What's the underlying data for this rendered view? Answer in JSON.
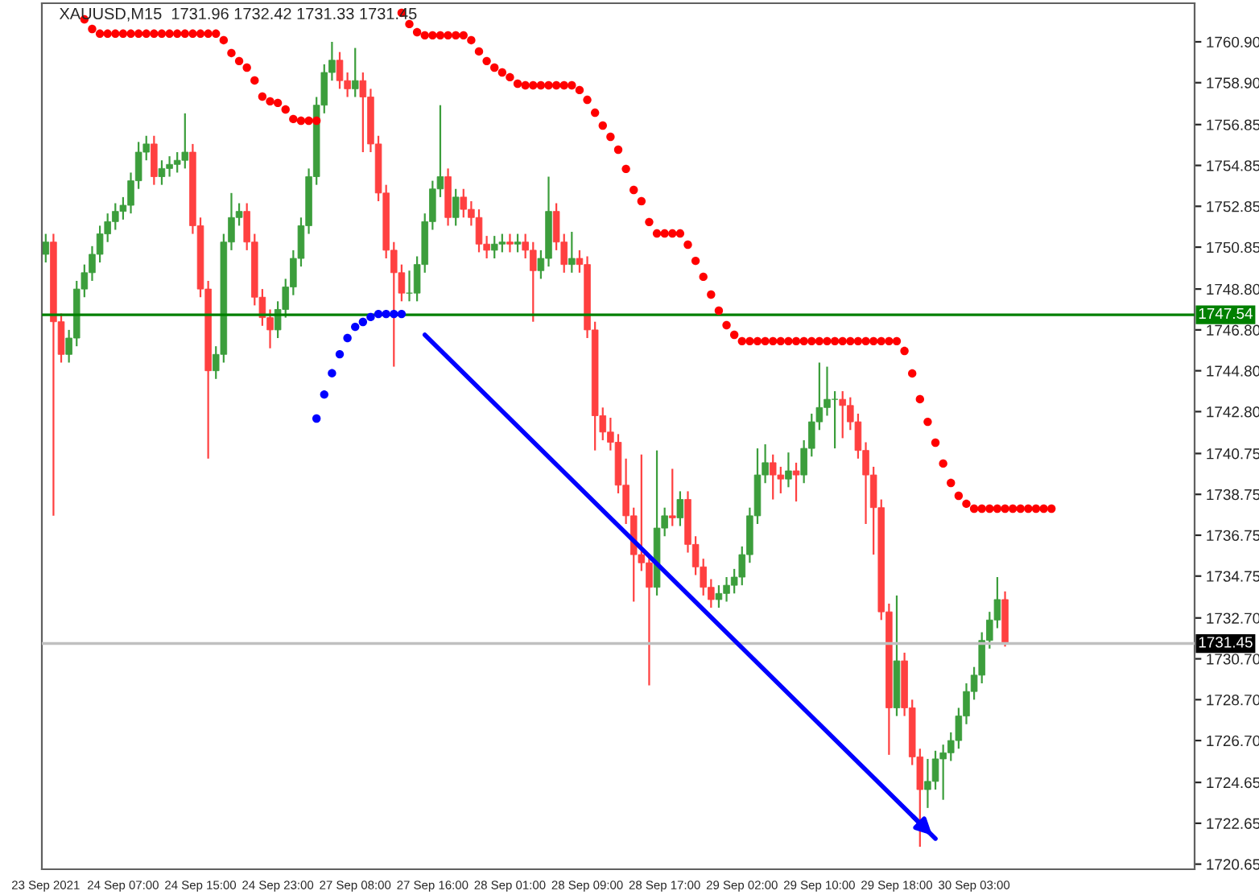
{
  "chart_data": {
    "type": "candlestick",
    "title": "XAUUSD,M15  1731.96 1732.42 1731.33 1731.45",
    "categories": [
      "23 Sep 2021",
      null,
      null,
      null,
      null,
      null,
      null,
      null,
      null,
      null,
      "24 Sep 07:00",
      null,
      null,
      null,
      null,
      null,
      null,
      null,
      null,
      null,
      "24 Sep 15:00",
      null,
      null,
      null,
      null,
      null,
      null,
      null,
      null,
      null,
      "24 Sep 23:00",
      null,
      null,
      null,
      null,
      null,
      null,
      null,
      null,
      null,
      "27 Sep 08:00",
      null,
      null,
      null,
      null,
      null,
      null,
      null,
      null,
      null,
      "27 Sep 16:00",
      null,
      null,
      null,
      null,
      null,
      null,
      null,
      null,
      null,
      "28 Sep 01:00",
      null,
      null,
      null,
      null,
      null,
      null,
      null,
      null,
      null,
      "28 Sep 09:00",
      null,
      null,
      null,
      null,
      null,
      null,
      null,
      null,
      null,
      "28 Sep 17:00",
      null,
      null,
      null,
      null,
      null,
      null,
      null,
      null,
      null,
      "29 Sep 02:00",
      null,
      null,
      null,
      null,
      null,
      null,
      null,
      null,
      null,
      "29 Sep 10:00",
      null,
      null,
      null,
      null,
      null,
      null,
      null,
      null,
      null,
      "29 Sep 18:00",
      null,
      null,
      null,
      null,
      null,
      null,
      null,
      null,
      null,
      "30 Sep 03:00",
      null,
      null,
      null,
      null,
      null,
      null,
      null,
      null,
      null,
      null,
      null,
      null,
      null,
      null,
      null,
      null,
      null,
      null,
      null,
      null,
      null,
      null,
      null,
      null,
      null,
      null,
      null,
      null
    ],
    "ohlc": [
      [
        1750.5,
        1751.5,
        1750.1,
        1751.1
      ],
      [
        1751.1,
        1751.5,
        1737.7,
        1747.2
      ],
      [
        1747.2,
        1747.6,
        1745.2,
        1745.6
      ],
      [
        1745.6,
        1746.8,
        1745.2,
        1746.4
      ],
      [
        1746.4,
        1749.2,
        1746.0,
        1748.8
      ],
      [
        1748.8,
        1750.0,
        1748.4,
        1749.6
      ],
      [
        1749.6,
        1750.9,
        1749.2,
        1750.5
      ],
      [
        1750.5,
        1751.9,
        1750.1,
        1751.5
      ],
      [
        1751.5,
        1752.5,
        1751.1,
        1752.1
      ],
      [
        1752.1,
        1753.0,
        1751.7,
        1752.6
      ],
      [
        1752.6,
        1753.3,
        1752.2,
        1752.9
      ],
      [
        1752.9,
        1754.5,
        1752.5,
        1754.1
      ],
      [
        1754.1,
        1756.0,
        1753.7,
        1755.5
      ],
      [
        1755.5,
        1756.3,
        1755.1,
        1755.9
      ],
      [
        1755.9,
        1756.3,
        1753.9,
        1754.3
      ],
      [
        1754.3,
        1755.1,
        1753.9,
        1754.7
      ],
      [
        1754.7,
        1755.3,
        1754.3,
        1754.9
      ],
      [
        1754.9,
        1755.5,
        1754.5,
        1755.1
      ],
      [
        1755.1,
        1757.4,
        1754.7,
        1755.5
      ],
      [
        1755.5,
        1755.9,
        1751.5,
        1751.9
      ],
      [
        1751.9,
        1752.3,
        1748.4,
        1748.8
      ],
      [
        1748.8,
        1749.2,
        1740.5,
        1744.8
      ],
      [
        1744.8,
        1746.0,
        1744.4,
        1745.6
      ],
      [
        1745.6,
        1751.5,
        1745.2,
        1751.1
      ],
      [
        1751.1,
        1753.5,
        1750.7,
        1752.3
      ],
      [
        1752.3,
        1753.0,
        1751.9,
        1752.6
      ],
      [
        1752.6,
        1753.0,
        1750.7,
        1751.1
      ],
      [
        1751.1,
        1751.5,
        1748.0,
        1748.4
      ],
      [
        1748.4,
        1748.8,
        1747.0,
        1747.4
      ],
      [
        1747.4,
        1747.8,
        1745.9,
        1746.8
      ],
      [
        1746.8,
        1748.2,
        1746.4,
        1747.8
      ],
      [
        1747.8,
        1749.3,
        1747.4,
        1748.9
      ],
      [
        1748.9,
        1750.7,
        1748.5,
        1750.3
      ],
      [
        1750.3,
        1752.3,
        1749.9,
        1751.9
      ],
      [
        1751.9,
        1754.7,
        1751.5,
        1754.3
      ],
      [
        1754.3,
        1758.2,
        1753.9,
        1757.8
      ],
      [
        1757.8,
        1759.8,
        1757.4,
        1759.4
      ],
      [
        1759.4,
        1760.9,
        1759.0,
        1760.0
      ],
      [
        1760.0,
        1760.4,
        1758.6,
        1759.0
      ],
      [
        1759.0,
        1759.4,
        1758.2,
        1758.6
      ],
      [
        1758.6,
        1760.6,
        1758.2,
        1759.0
      ],
      [
        1759.0,
        1759.4,
        1755.5,
        1758.2
      ],
      [
        1758.2,
        1758.6,
        1755.5,
        1755.9
      ],
      [
        1755.9,
        1756.3,
        1753.1,
        1753.5
      ],
      [
        1753.5,
        1753.9,
        1750.3,
        1750.7
      ],
      [
        1750.7,
        1751.1,
        1745.0,
        1749.6
      ],
      [
        1749.6,
        1750.0,
        1748.2,
        1748.6
      ],
      [
        1748.6,
        1749.7,
        1748.2,
        1748.6
      ],
      [
        1748.6,
        1750.4,
        1748.2,
        1750.0
      ],
      [
        1750.0,
        1752.5,
        1749.6,
        1752.1
      ],
      [
        1752.1,
        1754.1,
        1751.7,
        1753.7
      ],
      [
        1753.7,
        1757.8,
        1753.3,
        1754.3
      ],
      [
        1754.3,
        1754.7,
        1751.9,
        1752.3
      ],
      [
        1752.3,
        1753.7,
        1751.9,
        1753.3
      ],
      [
        1753.3,
        1753.7,
        1752.3,
        1752.7
      ],
      [
        1752.7,
        1753.1,
        1751.9,
        1752.3
      ],
      [
        1752.3,
        1752.7,
        1750.6,
        1751.0
      ],
      [
        1751.0,
        1751.4,
        1750.3,
        1750.7
      ],
      [
        1750.7,
        1751.4,
        1750.3,
        1751.0
      ],
      [
        1751.0,
        1751.5,
        1750.6,
        1751.1
      ],
      [
        1751.1,
        1751.5,
        1750.6,
        1751.0
      ],
      [
        1751.0,
        1751.5,
        1750.6,
        1751.1
      ],
      [
        1751.1,
        1751.5,
        1750.3,
        1750.7
      ],
      [
        1750.7,
        1751.1,
        1747.2,
        1749.7
      ],
      [
        1749.7,
        1750.7,
        1749.3,
        1750.3
      ],
      [
        1750.3,
        1754.3,
        1749.9,
        1752.6
      ],
      [
        1752.6,
        1753.0,
        1750.7,
        1751.1
      ],
      [
        1751.1,
        1751.5,
        1749.6,
        1750.0
      ],
      [
        1750.0,
        1751.6,
        1749.6,
        1750.3
      ],
      [
        1750.3,
        1750.7,
        1749.6,
        1750.0
      ],
      [
        1750.0,
        1750.4,
        1746.4,
        1746.8
      ],
      [
        1746.8,
        1747.2,
        1740.9,
        1742.6
      ],
      [
        1742.6,
        1743.0,
        1741.4,
        1741.8
      ],
      [
        1741.8,
        1742.5,
        1740.9,
        1741.3
      ],
      [
        1741.3,
        1741.7,
        1738.8,
        1739.2
      ],
      [
        1739.2,
        1740.5,
        1737.3,
        1737.7
      ],
      [
        1737.7,
        1738.1,
        1733.5,
        1735.8
      ],
      [
        1735.8,
        1740.7,
        1735.0,
        1735.4
      ],
      [
        1735.4,
        1735.8,
        1729.4,
        1734.2
      ],
      [
        1734.2,
        1740.9,
        1733.8,
        1737.1
      ],
      [
        1737.1,
        1738.1,
        1736.7,
        1737.7
      ],
      [
        1737.7,
        1740.0,
        1737.2,
        1737.6
      ],
      [
        1737.6,
        1738.9,
        1737.2,
        1738.5
      ],
      [
        1738.5,
        1738.9,
        1735.9,
        1736.3
      ],
      [
        1736.3,
        1736.7,
        1734.8,
        1735.2
      ],
      [
        1735.2,
        1735.6,
        1733.8,
        1734.2
      ],
      [
        1734.2,
        1734.6,
        1733.2,
        1733.6
      ],
      [
        1733.6,
        1734.3,
        1733.2,
        1733.9
      ],
      [
        1733.9,
        1734.7,
        1733.5,
        1734.3
      ],
      [
        1734.3,
        1735.1,
        1733.9,
        1734.7
      ],
      [
        1734.7,
        1736.2,
        1734.3,
        1735.8
      ],
      [
        1735.8,
        1738.1,
        1735.4,
        1737.7
      ],
      [
        1737.7,
        1741.0,
        1737.3,
        1739.7
      ],
      [
        1739.7,
        1741.2,
        1739.3,
        1740.3
      ],
      [
        1740.3,
        1740.7,
        1738.5,
        1739.7
      ],
      [
        1739.7,
        1740.1,
        1738.8,
        1739.5
      ],
      [
        1739.5,
        1740.8,
        1739.1,
        1739.9
      ],
      [
        1739.9,
        1740.3,
        1738.4,
        1739.7
      ],
      [
        1739.7,
        1741.4,
        1739.3,
        1741.0
      ],
      [
        1741.0,
        1742.7,
        1740.6,
        1742.3
      ],
      [
        1742.3,
        1745.2,
        1741.9,
        1743.0
      ],
      [
        1743.0,
        1745.0,
        1742.6,
        1743.4
      ],
      [
        1743.4,
        1743.8,
        1741.0,
        1743.4
      ],
      [
        1743.4,
        1743.8,
        1741.5,
        1743.1
      ],
      [
        1743.1,
        1743.5,
        1741.9,
        1742.3
      ],
      [
        1742.3,
        1742.7,
        1740.5,
        1740.9
      ],
      [
        1740.9,
        1741.3,
        1737.3,
        1739.7
      ],
      [
        1739.7,
        1740.1,
        1735.8,
        1738.1
      ],
      [
        1738.1,
        1738.5,
        1732.6,
        1733.0
      ],
      [
        1733.0,
        1733.4,
        1726.0,
        1728.3
      ],
      [
        1728.3,
        1733.8,
        1727.9,
        1730.6
      ],
      [
        1730.6,
        1731.0,
        1727.9,
        1728.3
      ],
      [
        1728.3,
        1728.7,
        1725.5,
        1725.9
      ],
      [
        1725.9,
        1726.3,
        1721.5,
        1724.3
      ],
      [
        1724.3,
        1725.8,
        1723.4,
        1724.7
      ],
      [
        1724.7,
        1726.2,
        1724.3,
        1725.8
      ],
      [
        1725.8,
        1726.5,
        1723.8,
        1726.1
      ],
      [
        1726.1,
        1727.1,
        1725.7,
        1726.7
      ],
      [
        1726.7,
        1728.3,
        1726.3,
        1727.9
      ],
      [
        1727.9,
        1729.5,
        1727.5,
        1729.1
      ],
      [
        1729.1,
        1730.3,
        1728.7,
        1729.9
      ],
      [
        1729.9,
        1732.0,
        1729.5,
        1731.6
      ],
      [
        1731.6,
        1733.0,
        1731.2,
        1732.6
      ],
      [
        1732.6,
        1734.7,
        1732.2,
        1733.6
      ],
      [
        1733.6,
        1734.0,
        1731.3,
        1731.5
      ],
      null,
      null,
      null,
      null,
      null,
      null,
      null,
      null,
      null,
      null,
      null,
      null,
      null,
      null,
      null,
      null,
      null,
      null,
      null,
      null,
      null,
      null,
      null,
      null
    ],
    "series": [
      {
        "type": "scatter",
        "color": "#ff0000",
        "values": [
          null,
          null,
          null,
          null,
          null,
          1762.0,
          1761.53,
          1761.3,
          1761.3,
          1761.3,
          1761.3,
          1761.3,
          1761.3,
          1761.3,
          1761.3,
          1761.3,
          1761.3,
          1761.3,
          1761.3,
          1761.3,
          1761.3,
          1761.3,
          1761.3,
          1760.98,
          1760.35,
          1759.96,
          1759.64,
          1759.01,
          1758.22,
          1757.99,
          1757.91,
          1757.59,
          1757.12,
          1757.04,
          1757.04,
          1757.04,
          null,
          null,
          null,
          null,
          null,
          null,
          null,
          null,
          null,
          null,
          1762.32,
          1761.77,
          1761.37,
          1761.22,
          1761.22,
          1761.22,
          1761.22,
          1761.22,
          1761.22,
          1760.98,
          1760.43,
          1759.96,
          1759.64,
          1759.4,
          1759.17,
          1758.85,
          1758.77,
          1758.77,
          1758.77,
          1758.77,
          1758.77,
          1758.77,
          1758.77,
          1758.54,
          1758.06,
          1757.43,
          1756.8,
          1756.25,
          1755.62,
          1754.68,
          1753.65,
          1753.1,
          1752.08,
          1751.52,
          1751.52,
          1751.52,
          1751.52,
          1750.97,
          1750.18,
          1749.4,
          1748.53,
          1747.74,
          1747.03,
          1746.56,
          1746.25,
          1746.25,
          1746.25,
          1746.25,
          1746.25,
          1746.25,
          1746.25,
          1746.25,
          1746.25,
          1746.25,
          1746.25,
          1746.25,
          1746.25,
          1746.25,
          1746.25,
          1746.25,
          1746.25,
          1746.25,
          1746.25,
          1746.25,
          1746.25,
          1745.77,
          1744.67,
          1743.41,
          1742.3,
          1741.28,
          1740.26,
          1739.31,
          1738.68,
          1738.29,
          1738.05,
          1738.05,
          1738.05,
          1738.05,
          1738.05,
          1738.05,
          1738.05,
          1738.05,
          1738.05,
          1738.05,
          1738.05,
          null,
          null,
          null,
          null,
          null,
          null,
          null,
          null,
          null,
          null,
          null,
          null,
          null,
          null,
          null,
          null,
          null,
          null
        ]
      },
      {
        "type": "scatter",
        "color": "#0000ff",
        "values": [
          null,
          null,
          null,
          null,
          null,
          null,
          null,
          null,
          null,
          null,
          null,
          null,
          null,
          null,
          null,
          null,
          null,
          null,
          null,
          null,
          null,
          null,
          null,
          null,
          null,
          null,
          null,
          null,
          null,
          null,
          null,
          null,
          null,
          null,
          null,
          1742.46,
          1743.64,
          1744.68,
          1745.61,
          1746.4,
          1746.95,
          1747.19,
          1747.43,
          1747.58,
          1747.58,
          1747.58,
          1747.58,
          null,
          null,
          null,
          null,
          null,
          null,
          null,
          null,
          null,
          null,
          null,
          null,
          null,
          null,
          null,
          null,
          null,
          null,
          null,
          null,
          null,
          null,
          null,
          null,
          null,
          null,
          null,
          null,
          null,
          null,
          null,
          null,
          null,
          null,
          null,
          null,
          null,
          null,
          null,
          null,
          null,
          null,
          null,
          null,
          null,
          null,
          null,
          null,
          null,
          null,
          null,
          null,
          null,
          null,
          null,
          null,
          null,
          null,
          null,
          null,
          null,
          null,
          null,
          null,
          null,
          null,
          null,
          null,
          null,
          null,
          null,
          null,
          null,
          null,
          null,
          null,
          null,
          null,
          null,
          null,
          null,
          null,
          null,
          null,
          null,
          null,
          null,
          null,
          null,
          null,
          null,
          null,
          null,
          null,
          null,
          null,
          null,
          null,
          null,
          null,
          null,
          null
        ]
      },
      {
        "type": "line",
        "color": "#0000ff",
        "values": [
          null,
          null,
          null,
          null,
          null,
          null,
          null,
          null,
          null,
          null,
          null,
          null,
          null,
          null,
          null,
          null,
          null,
          null,
          null,
          null,
          null,
          null,
          null,
          null,
          null,
          null,
          null,
          null,
          null,
          null,
          null,
          null,
          null,
          null,
          null,
          null,
          null,
          null,
          null,
          null,
          null,
          null,
          null,
          null,
          null,
          null,
          null,
          null,
          null,
          1746.56,
          null,
          null,
          null,
          null,
          null,
          null,
          null,
          null,
          null,
          null,
          null,
          null,
          null,
          null,
          null,
          null,
          null,
          null,
          null,
          null,
          null,
          null,
          null,
          null,
          null,
          null,
          null,
          null,
          null,
          null,
          null,
          null,
          null,
          null,
          null,
          null,
          null,
          null,
          null,
          null,
          null,
          null,
          null,
          null,
          null,
          null,
          null,
          null,
          null,
          null,
          null,
          null,
          null,
          null,
          null,
          null,
          null,
          null,
          null,
          null,
          null,
          null,
          null,
          null,
          null,
          1721.9,
          null,
          null,
          null,
          null,
          null,
          null,
          null,
          null,
          null,
          null,
          null,
          null,
          null,
          null,
          null,
          null,
          null,
          null,
          null,
          null,
          null,
          null,
          null,
          null,
          null,
          null,
          null,
          null,
          null,
          null,
          null,
          null,
          null
        ]
      }
    ],
    "ref_lines": [
      {
        "axis": "y",
        "value": 1747.54,
        "label": "1747.54",
        "color": "#008000"
      },
      {
        "axis": "y",
        "value": 1731.45,
        "label": "1731.45",
        "color": "#c0c0c0"
      }
    ],
    "ylim": [
      1720.4,
      1762.79
    ],
    "yticks": [
      {
        "value": 1720.65,
        "label": "1720.65"
      },
      {
        "value": 1722.65,
        "label": "1722.65"
      },
      {
        "value": 1724.65,
        "label": "1724.65"
      },
      {
        "value": 1726.7,
        "label": "1726.70"
      },
      {
        "value": 1728.7,
        "label": "1728.70"
      },
      {
        "value": 1730.7,
        "label": "1730.70"
      },
      {
        "value": 1732.7,
        "label": "1732.70"
      },
      {
        "value": 1734.75,
        "label": "1734.75"
      },
      {
        "value": 1736.75,
        "label": "1736.75"
      },
      {
        "value": 1738.75,
        "label": "1738.75"
      },
      {
        "value": 1740.75,
        "label": "1740.75"
      },
      {
        "value": 1742.8,
        "label": "1742.80"
      },
      {
        "value": 1744.8,
        "label": "1744.80"
      },
      {
        "value": 1746.8,
        "label": "1746.80"
      },
      {
        "value": 1748.8,
        "label": "1748.80"
      },
      {
        "value": 1750.85,
        "label": "1750.85"
      },
      {
        "value": 1752.85,
        "label": "1752.85"
      },
      {
        "value": 1754.85,
        "label": "1754.85"
      },
      {
        "value": 1756.85,
        "label": "1756.85"
      },
      {
        "value": 1758.9,
        "label": "1758.90"
      },
      {
        "value": 1760.9,
        "label": "1760.90"
      }
    ],
    "grid": false,
    "legend": false
  }
}
